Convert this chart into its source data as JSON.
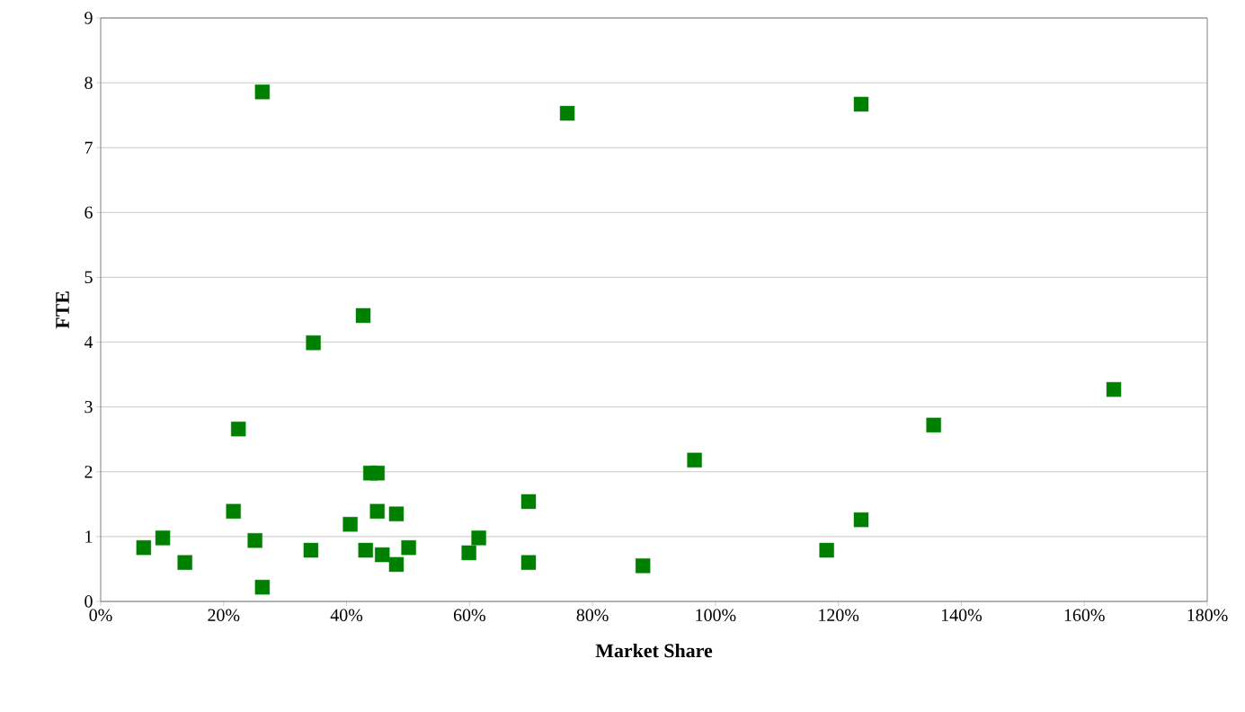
{
  "chart_data": {
    "type": "scatter",
    "xlabel": "Market Share",
    "ylabel": "FTE",
    "marker": "square",
    "grid": "y",
    "color": "#008000",
    "x": [
      7.0,
      10.1,
      13.7,
      21.6,
      22.4,
      25.1,
      26.3,
      26.3,
      34.2,
      34.6,
      40.6,
      42.7,
      43.1,
      43.9,
      45.0,
      45.0,
      45.8,
      48.1,
      48.1,
      50.1,
      59.9,
      61.5,
      69.6,
      69.6,
      75.9,
      88.2,
      96.6,
      118.1,
      123.7,
      123.7,
      135.5,
      164.8
    ],
    "values": [
      0.83,
      0.98,
      0.6,
      1.39,
      2.66,
      0.94,
      0.22,
      7.86,
      0.79,
      3.99,
      1.19,
      4.41,
      0.79,
      1.98,
      1.98,
      1.39,
      0.72,
      1.35,
      0.57,
      0.83,
      0.75,
      0.98,
      1.54,
      0.6,
      7.53,
      0.55,
      2.18,
      0.79,
      7.67,
      1.26,
      2.72,
      3.27
    ],
    "xlim": [
      0,
      180
    ],
    "ylim": [
      0,
      9
    ],
    "xticks": [
      {
        "value": 0,
        "label": "0%"
      },
      {
        "value": 20,
        "label": "20%"
      },
      {
        "value": 40,
        "label": "40%"
      },
      {
        "value": 60,
        "label": "60%"
      },
      {
        "value": 80,
        "label": "80%"
      },
      {
        "value": 100,
        "label": "100%"
      },
      {
        "value": 120,
        "label": "120%"
      },
      {
        "value": 140,
        "label": "140%"
      },
      {
        "value": 160,
        "label": "160%"
      },
      {
        "value": 180,
        "label": "180%"
      }
    ],
    "yticks": [
      0,
      1,
      2,
      3,
      4,
      5,
      6,
      7,
      8,
      9
    ]
  }
}
